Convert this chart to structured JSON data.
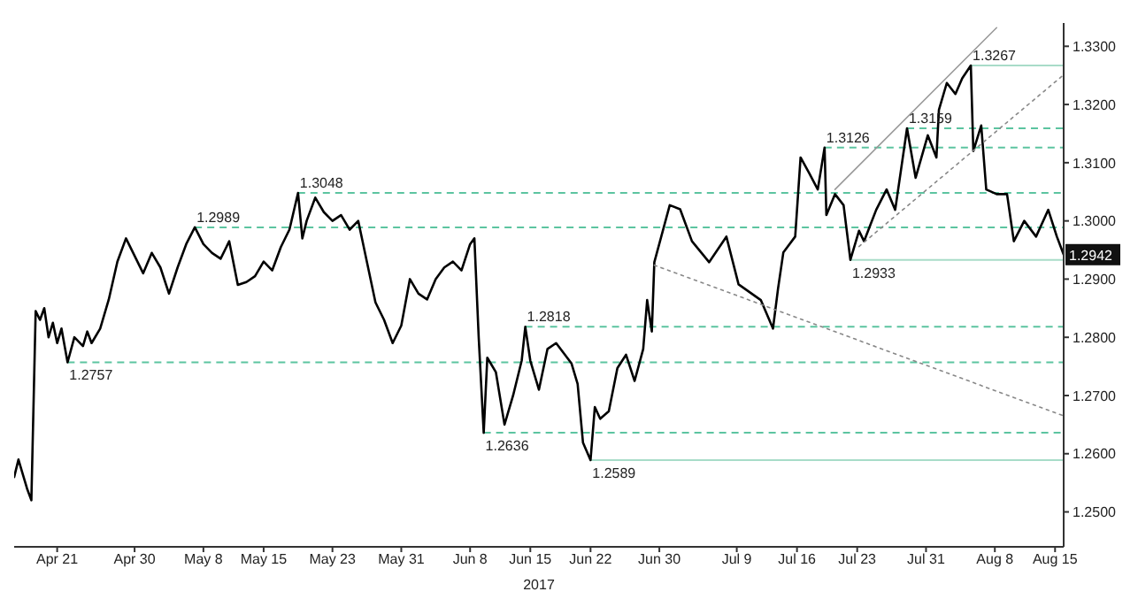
{
  "chart_data": {
    "type": "line",
    "xlabel": "2017",
    "xlim": [
      "2017-04-16",
      "2017-08-16"
    ],
    "xticks": [
      {
        "value": "2017-04-21",
        "label": "Apr 21"
      },
      {
        "value": "2017-04-30",
        "label": "Apr 30"
      },
      {
        "value": "2017-05-08",
        "label": "May 8"
      },
      {
        "value": "2017-05-15",
        "label": "May 15"
      },
      {
        "value": "2017-05-23",
        "label": "May 23"
      },
      {
        "value": "2017-05-31",
        "label": "May 31"
      },
      {
        "value": "2017-06-08",
        "label": "Jun 8"
      },
      {
        "value": "2017-06-15",
        "label": "Jun 15"
      },
      {
        "value": "2017-06-22",
        "label": "Jun 22"
      },
      {
        "value": "2017-06-30",
        "label": "Jun 30"
      },
      {
        "value": "2017-07-09",
        "label": "Jul 9"
      },
      {
        "value": "2017-07-16",
        "label": "Jul 16"
      },
      {
        "value": "2017-07-23",
        "label": "Jul 23"
      },
      {
        "value": "2017-07-31",
        "label": "Jul 31"
      },
      {
        "value": "2017-08-08",
        "label": "Aug 8"
      },
      {
        "value": "2017-08-15",
        "label": "Aug 15"
      }
    ],
    "ylim": [
      1.244,
      1.334
    ],
    "yticks": [
      {
        "value": 1.25,
        "label": "1.2500"
      },
      {
        "value": 1.26,
        "label": "1.2600"
      },
      {
        "value": 1.27,
        "label": "1.2700"
      },
      {
        "value": 1.28,
        "label": "1.2800"
      },
      {
        "value": 1.29,
        "label": "1.2900"
      },
      {
        "value": 1.3,
        "label": "1.3000"
      },
      {
        "value": 1.31,
        "label": "1.3100"
      },
      {
        "value": 1.32,
        "label": "1.3200"
      },
      {
        "value": 1.33,
        "label": "1.3300"
      }
    ],
    "grid": false,
    "series": [
      {
        "color": "#000000",
        "line_style": "solid",
        "x": [
          "2017-04-16T00:00",
          "2017-04-16T12:00",
          "2017-04-17T00:00",
          "2017-04-17T12:00",
          "2017-04-18T00:00",
          "2017-04-18T12:00",
          "2017-04-19T00:00",
          "2017-04-19T12:00",
          "2017-04-20T00:00",
          "2017-04-20T12:00",
          "2017-04-21T00:00",
          "2017-04-21T12:00",
          "2017-04-22T05:00",
          "2017-04-23T00:00",
          "2017-04-24T00:00",
          "2017-04-24T12:00",
          "2017-04-25T00:00",
          "2017-04-26T00:00",
          "2017-04-27T00:00",
          "2017-04-28T00:00",
          "2017-04-29T00:00",
          "2017-04-30T00:00",
          "2017-05-01T00:00",
          "2017-05-02T00:00",
          "2017-05-03T00:00",
          "2017-05-04T00:00",
          "2017-05-05T00:00",
          "2017-05-06T00:00",
          "2017-05-07T00:00",
          "2017-05-08T00:00",
          "2017-05-09T00:00",
          "2017-05-10T00:00",
          "2017-05-11T00:00",
          "2017-05-12T00:00",
          "2017-05-13T00:00",
          "2017-05-14T00:00",
          "2017-05-15T00:00",
          "2017-05-16T00:00",
          "2017-05-17T00:00",
          "2017-05-18T00:00",
          "2017-05-19T00:00",
          "2017-05-19T12:00",
          "2017-05-20T00:00",
          "2017-05-21T00:00",
          "2017-05-22T00:00",
          "2017-05-23T00:00",
          "2017-05-24T00:00",
          "2017-05-25T00:00",
          "2017-05-26T00:00",
          "2017-05-27T00:00",
          "2017-05-28T00:00",
          "2017-05-29T00:00",
          "2017-05-30T00:00",
          "2017-05-31T00:00",
          "2017-06-01T00:00",
          "2017-06-02T00:00",
          "2017-06-03T00:00",
          "2017-06-04T00:00",
          "2017-06-05T00:00",
          "2017-06-06T00:00",
          "2017-06-07T00:00",
          "2017-06-08T00:00",
          "2017-06-08T12:00",
          "2017-06-09T00:00",
          "2017-06-09T14:00",
          "2017-06-10T00:00",
          "2017-06-11T00:00",
          "2017-06-12T00:00",
          "2017-06-13T00:00",
          "2017-06-14T00:00",
          "2017-06-14T10:00",
          "2017-06-15T00:00",
          "2017-06-16T00:00",
          "2017-06-17T00:00",
          "2017-06-18T00:00",
          "2017-06-19T19:00",
          "2017-06-20T12:00",
          "2017-06-21T03:00",
          "2017-06-22T00:00",
          "2017-06-22T12:00",
          "2017-06-23T03:00",
          "2017-06-24T03:00",
          "2017-06-25T03:00",
          "2017-06-26T03:00",
          "2017-06-27T03:00",
          "2017-06-28T03:00",
          "2017-06-28T14:00",
          "2017-06-29T03:00",
          "2017-06-29T10:00",
          "2017-07-01T05:00",
          "2017-07-02T10:00",
          "2017-07-03T19:00",
          "2017-07-05T19:00",
          "2017-07-07T19:00",
          "2017-07-09T05:00",
          "2017-07-11T19:00",
          "2017-07-13T05:00",
          "2017-07-13T19:00",
          "2017-07-14T10:00",
          "2017-07-15T19:00",
          "2017-07-16T10:00",
          "2017-07-17T10:00",
          "2017-07-18T10:00",
          "2017-07-19T05:00",
          "2017-07-19T10:00",
          "2017-07-20T10:00",
          "2017-07-21T10:00",
          "2017-07-22T05:00",
          "2017-07-23T05:00",
          "2017-07-23T19:00",
          "2017-07-25T05:00",
          "2017-07-26T10:00",
          "2017-07-27T10:00",
          "2017-07-28T19:00",
          "2017-07-29T19:00",
          "2017-07-31T05:00",
          "2017-08-01T05:00",
          "2017-08-01T12:00",
          "2017-08-02T10:00",
          "2017-08-03T10:00",
          "2017-08-04T05:00",
          "2017-08-05T05:00",
          "2017-08-05T12:00",
          "2017-08-06T10:00",
          "2017-08-07T00:00",
          "2017-08-08T05:00",
          "2017-08-09T10:00",
          "2017-08-10T05:00",
          "2017-08-11T10:00",
          "2017-08-12T19:00",
          "2017-08-14T05:00",
          "2017-08-15T05:00",
          "2017-08-16T00:00"
        ],
        "values": [
          1.256,
          1.259,
          1.2565,
          1.254,
          1.252,
          1.2845,
          1.283,
          1.285,
          1.28,
          1.2825,
          1.279,
          1.2815,
          1.2757,
          1.28,
          1.2785,
          1.281,
          1.279,
          1.2815,
          1.2865,
          1.293,
          1.297,
          1.294,
          1.291,
          1.2945,
          1.292,
          1.2875,
          1.292,
          1.296,
          1.2989,
          1.296,
          1.2945,
          1.2935,
          1.2965,
          1.289,
          1.2895,
          1.2905,
          1.293,
          1.2915,
          1.2955,
          1.2985,
          1.3048,
          1.297,
          1.3,
          1.304,
          1.3015,
          1.3,
          1.301,
          1.2985,
          1.3,
          1.293,
          1.286,
          1.283,
          1.279,
          1.282,
          1.29,
          1.2875,
          1.2865,
          1.29,
          1.292,
          1.293,
          1.2915,
          1.296,
          1.297,
          1.28,
          1.2636,
          1.2765,
          1.274,
          1.265,
          1.27,
          1.276,
          1.2818,
          1.276,
          1.271,
          1.278,
          1.279,
          1.2755,
          1.272,
          1.2619,
          1.2589,
          1.268,
          1.266,
          1.2673,
          1.2747,
          1.277,
          1.2725,
          1.278,
          1.2864,
          1.281,
          1.2929,
          1.3027,
          1.302,
          1.2965,
          1.2929,
          1.2973,
          1.2891,
          1.2864,
          1.2815,
          1.2883,
          1.2946,
          1.2973,
          1.3109,
          1.3082,
          1.3054,
          1.3126,
          1.301,
          1.3046,
          1.3027,
          1.2933,
          1.2983,
          1.2965,
          1.3019,
          1.3054,
          1.3019,
          1.3159,
          1.3074,
          1.3147,
          1.3109,
          1.3191,
          1.3237,
          1.3218,
          1.3245,
          1.3267,
          1.312,
          1.3164,
          1.3054,
          1.3046,
          1.3046,
          1.2965,
          1.3,
          1.2973,
          1.3019,
          1.2973,
          1.2942
        ]
      },
      {
        "color": "#999999",
        "line_style": "solid",
        "x": [
          "2017-07-20T10:00",
          "2017-08-08T05:00"
        ],
        "values": [
          1.3054,
          1.3332
        ]
      },
      {
        "color": "#888888",
        "line_style": "dotted",
        "x": [
          "2017-07-23T05:00",
          "2017-08-16T00:00"
        ],
        "values": [
          1.2956,
          1.3251
        ]
      },
      {
        "color": "#888888",
        "line_style": "dotted",
        "x": [
          "2017-06-29T10:00",
          "2017-08-16T00:00"
        ],
        "values": [
          1.2924,
          1.2665
        ]
      }
    ],
    "ref_lines": [
      {
        "axis": "y",
        "value": 1.2757,
        "color": "#5cc4a0",
        "line_style": "dashed"
      },
      {
        "axis": "y",
        "value": 1.2989,
        "color": "#5cc4a0",
        "line_style": "dashed"
      },
      {
        "axis": "y",
        "value": 1.3048,
        "color": "#5cc4a0",
        "line_style": "dashed"
      },
      {
        "axis": "y",
        "value": 1.2636,
        "color": "#5cc4a0",
        "line_style": "dashed"
      },
      {
        "axis": "y",
        "value": 1.2818,
        "color": "#5cc4a0",
        "line_style": "dashed"
      },
      {
        "axis": "y",
        "value": 1.2589,
        "color": "#a8dcc8",
        "line_style": "solid"
      },
      {
        "axis": "y",
        "value": 1.3126,
        "color": "#5cc4a0",
        "line_style": "dashed"
      },
      {
        "axis": "y",
        "value": 1.2933,
        "color": "#a8dcc8",
        "line_style": "solid"
      },
      {
        "axis": "y",
        "value": 1.3159,
        "color": "#5cc4a0",
        "line_style": "dashed"
      },
      {
        "axis": "y",
        "value": 1.3267,
        "color": "#a8dcc8",
        "line_style": "solid"
      }
    ],
    "annotations": [
      {
        "text": "1.2757",
        "x": "2017-04-22T05:00",
        "y": 1.2757
      },
      {
        "text": "1.2989",
        "x": "2017-05-07T00:00",
        "y": 1.2989
      },
      {
        "text": "1.3048",
        "x": "2017-05-19T00:00",
        "y": 1.3048
      },
      {
        "text": "1.2636",
        "x": "2017-06-09T14:00",
        "y": 1.2636
      },
      {
        "text": "1.2818",
        "x": "2017-06-14T10:00",
        "y": 1.2818
      },
      {
        "text": "1.2589",
        "x": "2017-06-22T00:00",
        "y": 1.2589
      },
      {
        "text": "1.3126",
        "x": "2017-07-19T05:00",
        "y": 1.3126
      },
      {
        "text": "1.2933",
        "x": "2017-07-22T05:00",
        "y": 1.2933
      },
      {
        "text": "1.3159",
        "x": "2017-07-28T19:00",
        "y": 1.3159
      },
      {
        "text": "1.3267",
        "x": "2017-08-05T05:00",
        "y": 1.3267
      },
      {
        "text": "1.2942",
        "x": "2017-08-16",
        "y": 1.2942
      }
    ]
  }
}
